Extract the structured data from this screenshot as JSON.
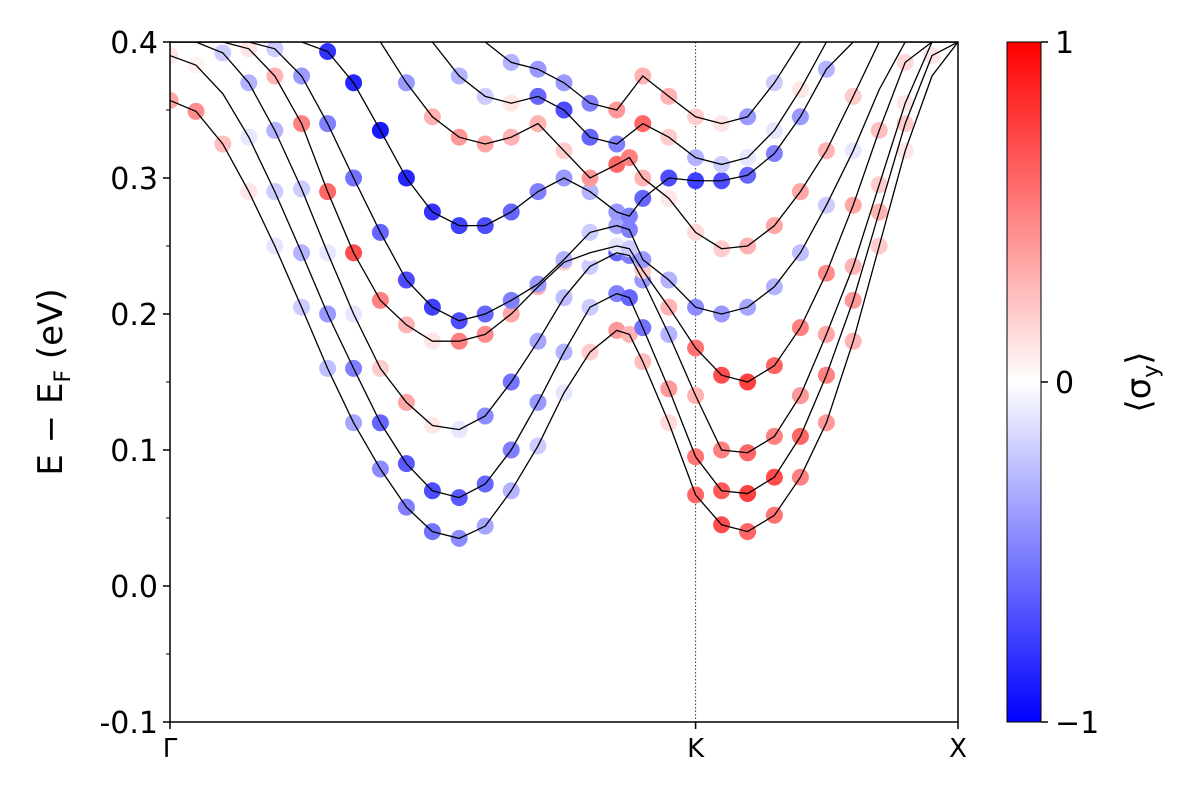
{
  "chart_data": {
    "type": "scatter",
    "title": "",
    "ylabel": "E − E",
    "ylabel_sub": "F",
    "ylabel_unit": " (eV)",
    "ylim": [
      -0.1,
      0.4
    ],
    "yticks": [
      {
        "value": -0.1,
        "label": "-0.1"
      },
      {
        "value": 0.0,
        "label": "0.0"
      },
      {
        "value": 0.1,
        "label": "0.1"
      },
      {
        "value": 0.2,
        "label": "0.2"
      },
      {
        "value": 0.3,
        "label": "0.3"
      },
      {
        "value": 0.4,
        "label": "0.4"
      }
    ],
    "xlim": [
      0,
      1
    ],
    "xticks": [
      {
        "value": 0.0,
        "label": "Γ"
      },
      {
        "value": 0.667,
        "label": "K"
      },
      {
        "value": 1.0,
        "label": "X"
      }
    ],
    "high_symmetry_line_x": 0.667,
    "grid": false,
    "legend": "none",
    "colorbar": {
      "label": "⟨σ",
      "label_sub": "y",
      "label_end": "⟩",
      "range": [
        -1,
        1
      ],
      "ticks": [
        {
          "value": 1,
          "label": "1"
        },
        {
          "value": 0,
          "label": "0"
        },
        {
          "value": -1,
          "label": "−1"
        }
      ],
      "colors": [
        "#0000ff",
        "#ffffff",
        "#ff0000"
      ]
    },
    "bands": [
      {
        "points": [
          [
            0.0,
            0.357
          ],
          [
            0.033,
            0.349
          ],
          [
            0.067,
            0.325
          ],
          [
            0.1,
            0.29
          ],
          [
            0.133,
            0.25
          ],
          [
            0.167,
            0.205
          ],
          [
            0.2,
            0.16
          ],
          [
            0.233,
            0.12
          ],
          [
            0.267,
            0.086
          ],
          [
            0.3,
            0.058
          ],
          [
            0.333,
            0.04
          ],
          [
            0.367,
            0.035
          ],
          [
            0.4,
            0.044
          ],
          [
            0.433,
            0.07
          ],
          [
            0.467,
            0.103
          ],
          [
            0.5,
            0.142
          ],
          [
            0.533,
            0.172
          ],
          [
            0.567,
            0.188
          ],
          [
            0.583,
            0.185
          ],
          [
            0.6,
            0.165
          ],
          [
            0.633,
            0.12
          ],
          [
            0.667,
            0.067
          ],
          [
            0.7,
            0.045
          ],
          [
            0.733,
            0.04
          ],
          [
            0.767,
            0.052
          ],
          [
            0.8,
            0.08
          ],
          [
            0.833,
            0.12
          ],
          [
            0.867,
            0.18
          ],
          [
            0.9,
            0.25
          ],
          [
            0.933,
            0.32
          ],
          [
            0.967,
            0.375
          ],
          [
            1.0,
            0.4
          ]
        ],
        "spin": [
          0.35,
          0.45,
          0.25,
          0.1,
          -0.1,
          -0.2,
          -0.25,
          -0.35,
          -0.45,
          -0.5,
          -0.55,
          -0.45,
          -0.35,
          -0.3,
          -0.2,
          -0.1,
          0.2,
          0.4,
          0.3,
          0.25,
          0.15,
          0.6,
          0.7,
          0.6,
          0.55,
          0.5,
          0.4,
          0.3,
          0.2,
          0.1,
          0.0,
          -0.1
        ]
      },
      {
        "points": [
          [
            0.0,
            0.39
          ],
          [
            0.033,
            0.383
          ],
          [
            0.067,
            0.362
          ],
          [
            0.1,
            0.33
          ],
          [
            0.133,
            0.29
          ],
          [
            0.167,
            0.245
          ],
          [
            0.2,
            0.2
          ],
          [
            0.233,
            0.16
          ],
          [
            0.267,
            0.12
          ],
          [
            0.3,
            0.09
          ],
          [
            0.333,
            0.07
          ],
          [
            0.367,
            0.065
          ],
          [
            0.4,
            0.075
          ],
          [
            0.433,
            0.1
          ],
          [
            0.467,
            0.135
          ],
          [
            0.5,
            0.172
          ],
          [
            0.533,
            0.205
          ],
          [
            0.567,
            0.215
          ],
          [
            0.583,
            0.212
          ],
          [
            0.6,
            0.19
          ],
          [
            0.633,
            0.145
          ],
          [
            0.667,
            0.095
          ],
          [
            0.7,
            0.07
          ],
          [
            0.733,
            0.068
          ],
          [
            0.767,
            0.08
          ],
          [
            0.8,
            0.11
          ],
          [
            0.833,
            0.155
          ],
          [
            0.867,
            0.21
          ],
          [
            0.9,
            0.275
          ],
          [
            0.933,
            0.34
          ],
          [
            0.967,
            0.39
          ],
          [
            1.0,
            0.4
          ]
        ],
        "spin": [
          0.1,
          0.05,
          0.0,
          -0.1,
          -0.2,
          -0.3,
          -0.4,
          -0.5,
          -0.6,
          -0.65,
          -0.7,
          -0.65,
          -0.6,
          -0.5,
          -0.4,
          -0.3,
          -0.2,
          -0.5,
          -0.6,
          -0.55,
          0.4,
          0.55,
          0.65,
          0.75,
          0.7,
          0.6,
          0.5,
          0.4,
          0.3,
          0.2,
          0.1,
          0.0
        ]
      },
      {
        "points": [
          [
            0.0,
            0.4
          ],
          [
            0.033,
            0.4
          ],
          [
            0.067,
            0.392
          ],
          [
            0.1,
            0.37
          ],
          [
            0.133,
            0.335
          ],
          [
            0.167,
            0.292
          ],
          [
            0.2,
            0.245
          ],
          [
            0.233,
            0.2
          ],
          [
            0.267,
            0.16
          ],
          [
            0.3,
            0.135
          ],
          [
            0.333,
            0.118
          ],
          [
            0.367,
            0.115
          ],
          [
            0.4,
            0.125
          ],
          [
            0.433,
            0.15
          ],
          [
            0.467,
            0.18
          ],
          [
            0.5,
            0.212
          ],
          [
            0.533,
            0.235
          ],
          [
            0.567,
            0.245
          ],
          [
            0.583,
            0.243
          ],
          [
            0.6,
            0.225
          ],
          [
            0.633,
            0.185
          ],
          [
            0.667,
            0.14
          ],
          [
            0.7,
            0.1
          ],
          [
            0.733,
            0.098
          ],
          [
            0.767,
            0.11
          ],
          [
            0.8,
            0.14
          ],
          [
            0.833,
            0.185
          ],
          [
            0.867,
            0.235
          ],
          [
            0.9,
            0.295
          ],
          [
            0.933,
            0.355
          ],
          [
            0.967,
            0.4
          ],
          [
            1.0,
            0.4
          ]
        ],
        "spin": [
          0.0,
          0.0,
          -0.2,
          -0.3,
          -0.3,
          -0.2,
          -0.1,
          -0.1,
          0.2,
          0.35,
          0.1,
          -0.1,
          -0.45,
          -0.55,
          -0.35,
          -0.25,
          -0.2,
          -0.6,
          -0.5,
          -0.4,
          -0.3,
          0.3,
          0.5,
          0.6,
          0.5,
          0.4,
          0.35,
          0.3,
          0.2,
          0.1,
          0.0,
          0.0
        ]
      },
      {
        "points": [
          [
            0.0,
            0.4
          ],
          [
            0.067,
            0.4
          ],
          [
            0.1,
            0.395
          ],
          [
            0.133,
            0.375
          ],
          [
            0.167,
            0.34
          ],
          [
            0.2,
            0.29
          ],
          [
            0.233,
            0.245
          ],
          [
            0.267,
            0.21
          ],
          [
            0.3,
            0.192
          ],
          [
            0.333,
            0.18
          ],
          [
            0.367,
            0.18
          ],
          [
            0.4,
            0.185
          ],
          [
            0.433,
            0.2
          ],
          [
            0.467,
            0.22
          ],
          [
            0.5,
            0.238
          ],
          [
            0.533,
            0.245
          ],
          [
            0.567,
            0.25
          ],
          [
            0.583,
            0.248
          ],
          [
            0.6,
            0.232
          ],
          [
            0.633,
            0.205
          ],
          [
            0.667,
            0.175
          ],
          [
            0.7,
            0.155
          ],
          [
            0.733,
            0.15
          ],
          [
            0.767,
            0.162
          ],
          [
            0.8,
            0.19
          ],
          [
            0.833,
            0.23
          ],
          [
            0.867,
            0.28
          ],
          [
            0.9,
            0.335
          ],
          [
            0.933,
            0.385
          ],
          [
            0.967,
            0.4
          ],
          [
            1.0,
            0.4
          ]
        ],
        "spin": [
          0.0,
          0.0,
          0.1,
          0.3,
          0.5,
          0.6,
          0.7,
          0.5,
          0.3,
          0.1,
          0.5,
          0.45,
          0.35,
          0.3,
          0.2,
          0.0,
          -0.1,
          -0.2,
          0.2,
          0.3,
          0.55,
          0.7,
          0.75,
          0.6,
          0.5,
          0.45,
          0.35,
          0.25,
          0.15,
          0.05,
          0.0
        ]
      },
      {
        "points": [
          [
            0.0,
            0.4
          ],
          [
            0.1,
            0.4
          ],
          [
            0.133,
            0.395
          ],
          [
            0.167,
            0.375
          ],
          [
            0.2,
            0.34
          ],
          [
            0.233,
            0.3
          ],
          [
            0.267,
            0.26
          ],
          [
            0.3,
            0.225
          ],
          [
            0.333,
            0.205
          ],
          [
            0.367,
            0.195
          ],
          [
            0.4,
            0.2
          ],
          [
            0.433,
            0.21
          ],
          [
            0.467,
            0.222
          ],
          [
            0.5,
            0.24
          ],
          [
            0.533,
            0.26
          ],
          [
            0.567,
            0.265
          ],
          [
            0.583,
            0.262
          ],
          [
            0.6,
            0.24
          ],
          [
            0.633,
            0.225
          ],
          [
            0.667,
            0.205
          ],
          [
            0.7,
            0.2
          ],
          [
            0.733,
            0.205
          ],
          [
            0.767,
            0.22
          ],
          [
            0.8,
            0.245
          ],
          [
            0.833,
            0.28
          ],
          [
            0.867,
            0.32
          ],
          [
            0.9,
            0.365
          ],
          [
            0.933,
            0.4
          ],
          [
            1.0,
            0.4
          ]
        ],
        "spin": [
          0.0,
          0.0,
          -0.2,
          -0.4,
          -0.5,
          -0.55,
          -0.6,
          -0.7,
          -0.75,
          -0.7,
          -0.6,
          -0.5,
          -0.4,
          -0.3,
          -0.2,
          -0.35,
          -0.5,
          -0.4,
          -0.3,
          -0.45,
          -0.4,
          -0.35,
          -0.3,
          -0.25,
          -0.2,
          -0.1,
          0.0,
          0.0,
          0.0
        ]
      },
      {
        "points": [
          [
            0.0,
            0.4
          ],
          [
            0.167,
            0.4
          ],
          [
            0.2,
            0.393
          ],
          [
            0.233,
            0.37
          ],
          [
            0.267,
            0.335
          ],
          [
            0.3,
            0.3
          ],
          [
            0.333,
            0.275
          ],
          [
            0.367,
            0.265
          ],
          [
            0.4,
            0.265
          ],
          [
            0.433,
            0.275
          ],
          [
            0.467,
            0.29
          ],
          [
            0.5,
            0.3
          ],
          [
            0.533,
            0.29
          ],
          [
            0.567,
            0.275
          ],
          [
            0.583,
            0.272
          ],
          [
            0.6,
            0.285
          ],
          [
            0.633,
            0.3
          ],
          [
            0.667,
            0.298
          ],
          [
            0.7,
            0.298
          ],
          [
            0.733,
            0.302
          ],
          [
            0.767,
            0.318
          ],
          [
            0.8,
            0.345
          ],
          [
            0.833,
            0.38
          ],
          [
            0.867,
            0.4
          ],
          [
            1.0,
            0.4
          ]
        ],
        "spin": [
          0.0,
          0.0,
          -0.8,
          -0.85,
          -0.9,
          -0.85,
          -0.8,
          -0.75,
          -0.7,
          -0.6,
          -0.5,
          -0.4,
          -0.3,
          -0.4,
          -0.5,
          -0.6,
          -0.7,
          -0.75,
          -0.7,
          -0.6,
          -0.5,
          -0.4,
          -0.3,
          0.0,
          0.0
        ]
      },
      {
        "points": [
          [
            0.267,
            0.4
          ],
          [
            0.3,
            0.37
          ],
          [
            0.333,
            0.345
          ],
          [
            0.367,
            0.33
          ],
          [
            0.4,
            0.325
          ],
          [
            0.433,
            0.33
          ],
          [
            0.467,
            0.34
          ],
          [
            0.5,
            0.32
          ],
          [
            0.533,
            0.3
          ],
          [
            0.567,
            0.31
          ],
          [
            0.583,
            0.315
          ],
          [
            0.6,
            0.3
          ],
          [
            0.633,
            0.285
          ],
          [
            0.667,
            0.26
          ],
          [
            0.7,
            0.248
          ],
          [
            0.733,
            0.25
          ],
          [
            0.767,
            0.265
          ],
          [
            0.8,
            0.29
          ],
          [
            0.833,
            0.32
          ],
          [
            0.867,
            0.36
          ],
          [
            0.9,
            0.4
          ]
        ],
        "spin": [
          -0.6,
          -0.4,
          0.3,
          0.4,
          0.35,
          0.3,
          0.3,
          0.2,
          0.4,
          0.6,
          0.5,
          0.3,
          0.1,
          0.15,
          0.2,
          0.3,
          0.35,
          0.35,
          0.3,
          0.2,
          0.1
        ]
      },
      {
        "points": [
          [
            0.333,
            0.4
          ],
          [
            0.367,
            0.375
          ],
          [
            0.4,
            0.36
          ],
          [
            0.433,
            0.355
          ],
          [
            0.467,
            0.36
          ],
          [
            0.5,
            0.35
          ],
          [
            0.533,
            0.33
          ],
          [
            0.567,
            0.325
          ],
          [
            0.6,
            0.34
          ],
          [
            0.633,
            0.33
          ],
          [
            0.667,
            0.315
          ],
          [
            0.7,
            0.31
          ],
          [
            0.733,
            0.315
          ],
          [
            0.767,
            0.335
          ],
          [
            0.8,
            0.365
          ],
          [
            0.833,
            0.4
          ]
        ],
        "spin": [
          -0.5,
          -0.3,
          -0.2,
          0.1,
          -0.6,
          -0.7,
          -0.6,
          -0.5,
          0.6,
          0.2,
          -0.3,
          -0.2,
          -0.1,
          -0.1,
          0.1,
          0.2
        ]
      },
      {
        "points": [
          [
            0.4,
            0.4
          ],
          [
            0.433,
            0.385
          ],
          [
            0.467,
            0.38
          ],
          [
            0.5,
            0.37
          ],
          [
            0.533,
            0.355
          ],
          [
            0.567,
            0.35
          ],
          [
            0.6,
            0.375
          ],
          [
            0.633,
            0.36
          ],
          [
            0.667,
            0.345
          ],
          [
            0.7,
            0.34
          ],
          [
            0.733,
            0.345
          ],
          [
            0.767,
            0.37
          ],
          [
            0.8,
            0.4
          ]
        ],
        "spin": [
          -0.3,
          -0.3,
          -0.4,
          -0.4,
          -0.5,
          0.4,
          0.3,
          0.3,
          0.2,
          0.1,
          -0.4,
          -0.2,
          0.0
        ]
      }
    ]
  }
}
